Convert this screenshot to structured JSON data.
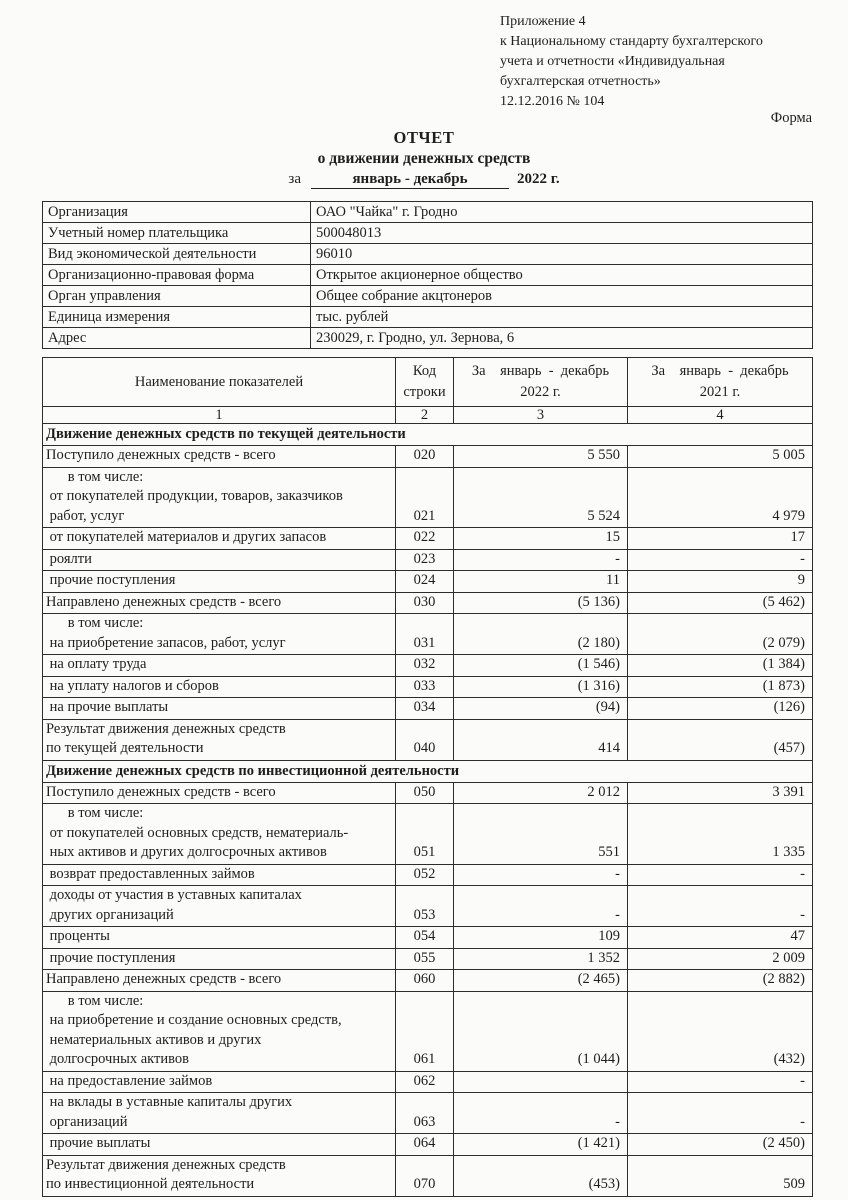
{
  "header": {
    "appendix_lines": [
      "Приложение 4",
      "к Национальному стандарту бухгалтерского",
      "учета и отчетности «Индивидуальная",
      "бухгалтерская отчетность»",
      "12.12.2016 № 104"
    ],
    "form_label": "Форма"
  },
  "title": {
    "line1": "ОТЧЕТ",
    "line2": "о движении денежных средств",
    "period_prefix": "за",
    "period_value": "январь  -  декабрь",
    "period_suffix": "2022 г."
  },
  "org_info": {
    "rows": [
      {
        "label": "Организация",
        "value": "ОАО \"Чайка\" г. Гродно"
      },
      {
        "label": "Учетный номер плательщика",
        "value": "500048013"
      },
      {
        "label": "Вид экономической деятельности",
        "value": "96010"
      },
      {
        "label": "Организационно-правовая форма",
        "value": "Открытое акционерное общество"
      },
      {
        "label": "Орган управления",
        "value": "Общее собрание акцтонеров"
      },
      {
        "label": "Единица измерения",
        "value": "тыс. рублей"
      },
      {
        "label": "Адрес",
        "value": "230029, г. Гродно, ул. Зернова, 6"
      }
    ]
  },
  "table": {
    "columns": [
      "Наименование показателей",
      "Код\nстроки",
      "За    январь  -  декабрь\n2022 г.",
      "За    январь  -  декабрь\n2021 г."
    ],
    "column_numbers": [
      "1",
      "2",
      "3",
      "4"
    ],
    "rows": [
      {
        "type": "section",
        "label": "Движение денежных средств по текущей деятельности"
      },
      {
        "type": "data",
        "label": "Поступило денежных средств - всего",
        "code": "020",
        "v2022": "5 550",
        "v2021": "5 005"
      },
      {
        "type": "data",
        "label": "      в том числе:\n от покупателей продукции, товаров, заказчиков\n работ, услуг",
        "code": "021",
        "v2022": "5 524",
        "v2021": "4 979"
      },
      {
        "type": "data",
        "label": " от покупателей материалов и других запасов",
        "code": "022",
        "v2022": "15",
        "v2021": "17"
      },
      {
        "type": "data",
        "label": " роялти",
        "code": "023",
        "v2022": "-",
        "v2021": "-"
      },
      {
        "type": "data",
        "label": " прочие поступления",
        "code": "024",
        "v2022": "11",
        "v2021": "9"
      },
      {
        "type": "data",
        "label": "Направлено денежных средств - всего",
        "code": "030",
        "v2022": "(5 136)",
        "v2021": "(5 462)"
      },
      {
        "type": "data",
        "label": "      в том числе:\n на приобретение запасов, работ, услуг",
        "code": "031",
        "v2022": "(2 180)",
        "v2021": "(2 079)"
      },
      {
        "type": "data",
        "label": " на оплату труда",
        "code": "032",
        "v2022": "(1 546)",
        "v2021": "(1 384)"
      },
      {
        "type": "data",
        "label": " на уплату налогов и сборов",
        "code": "033",
        "v2022": "(1 316)",
        "v2021": "(1 873)"
      },
      {
        "type": "data",
        "label": " на прочие выплаты",
        "code": "034",
        "v2022": "(94)",
        "v2021": "(126)"
      },
      {
        "type": "data",
        "label": "Результат движения денежных средств\nпо текущей деятельности",
        "code": "040",
        "v2022": "414",
        "v2021": "(457)"
      },
      {
        "type": "section",
        "label": "Движение денежных средств по инвестиционной деятельности"
      },
      {
        "type": "data",
        "label": "Поступило денежных средств - всего",
        "code": "050",
        "v2022": "2 012",
        "v2021": "3 391"
      },
      {
        "type": "data",
        "label": "      в том числе:\n от покупателей основных средств, нематериаль-\n ных активов и других долгосрочных активов",
        "code": "051",
        "v2022": "551",
        "v2021": "1 335"
      },
      {
        "type": "data",
        "label": " возврат предоставленных займов",
        "code": "052",
        "v2022": "-",
        "v2021": "-"
      },
      {
        "type": "data",
        "label": " доходы от участия в уставных капиталах\n других организаций",
        "code": "053",
        "v2022": "-",
        "v2021": "-"
      },
      {
        "type": "data",
        "label": " проценты",
        "code": "054",
        "v2022": "109",
        "v2021": "47"
      },
      {
        "type": "data",
        "label": " прочие поступления",
        "code": "055",
        "v2022": "1 352",
        "v2021": "2 009"
      },
      {
        "type": "data",
        "label": "Направлено денежных средств - всего",
        "code": "060",
        "v2022": "(2 465)",
        "v2021": "(2 882)"
      },
      {
        "type": "data",
        "label": "      в том числе:\n на приобретение и создание основных средств,\n нематериальных активов и других\n долгосрочных активов",
        "code": "061",
        "v2022": "(1 044)",
        "v2021": "(432)"
      },
      {
        "type": "data",
        "label": " на предоставление займов",
        "code": "062",
        "v2022": "",
        "v2021": "-"
      },
      {
        "type": "data",
        "label": " на вклады в уставные капиталы других\n организаций",
        "code": "063",
        "v2022": "-",
        "v2021": "-"
      },
      {
        "type": "data",
        "label": " прочие выплаты",
        "code": "064",
        "v2022": "(1 421)",
        "v2021": "(2 450)"
      },
      {
        "type": "data",
        "label": "Результат движения денежных средств\nпо инвестиционной деятельности",
        "code": "070",
        "v2022": "(453)",
        "v2021": "509"
      }
    ]
  }
}
